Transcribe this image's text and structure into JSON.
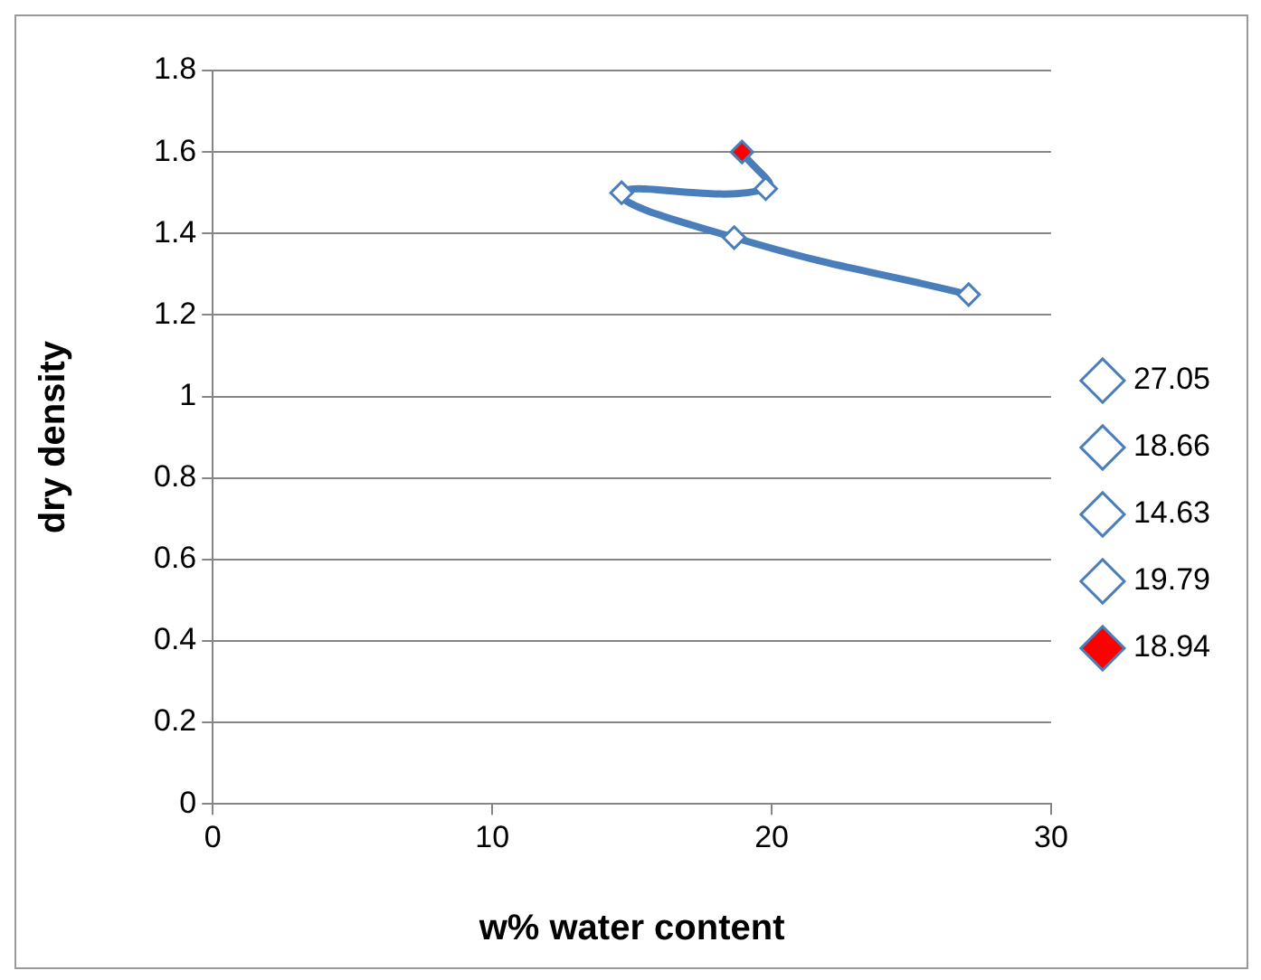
{
  "chart_data": {
    "type": "scatter",
    "xlabel": "w% water content",
    "ylabel": "dry density",
    "series": [
      {
        "type": "line",
        "color": "#4a7ebb",
        "x": [
          27.05,
          18.66,
          14.63,
          19.79,
          18.94
        ],
        "values": [
          1.25,
          1.39,
          1.5,
          1.51,
          1.6
        ],
        "marker": "none"
      },
      {
        "name": "27.05",
        "color": "#4a7ebb",
        "x": [
          27.05
        ],
        "values": [
          1.25
        ]
      },
      {
        "name": "18.66",
        "color": "#4a7ebb",
        "x": [
          18.66
        ],
        "values": [
          1.39
        ]
      },
      {
        "name": "14.63",
        "color": "#4a7ebb",
        "x": [
          14.63
        ],
        "values": [
          1.5
        ]
      },
      {
        "name": "19.79",
        "color": "#4a7ebb",
        "x": [
          19.79
        ],
        "values": [
          1.51
        ]
      },
      {
        "name": "18.94",
        "color": "#ff0000",
        "x": [
          18.94
        ],
        "values": [
          1.6
        ]
      }
    ],
    "marker": "diamond",
    "xlim": [
      0,
      30
    ],
    "xticks": [
      0,
      10,
      20,
      30
    ],
    "ylim": [
      0,
      1.8
    ],
    "yticks": [
      0,
      0.2,
      0.4,
      0.6,
      0.8,
      1,
      1.2,
      1.4,
      1.6,
      1.8
    ],
    "grid": "y",
    "legend": "right"
  }
}
